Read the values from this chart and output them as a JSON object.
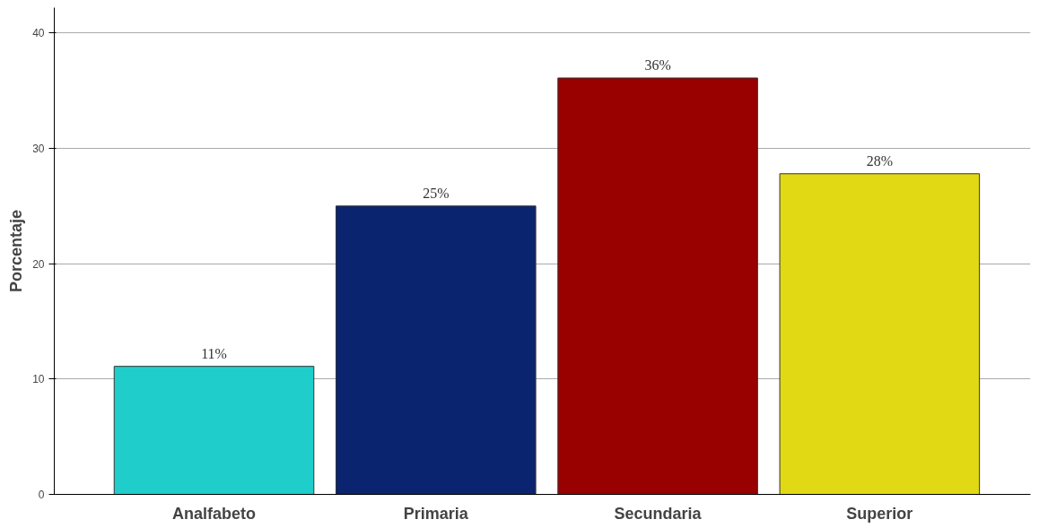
{
  "chart_data": {
    "type": "bar",
    "ylabel": "Porcentaje",
    "categories": [
      "Analfabeto",
      "Primaria",
      "Secundaria",
      "Superior"
    ],
    "values": [
      11.1,
      25,
      36.1,
      27.8
    ],
    "colors": [
      "#1fcecb",
      "#0b2470",
      "#990000",
      "#e1d913"
    ],
    "value_labels": [
      "11%",
      "25%",
      "36%",
      "28%"
    ],
    "ylim": [
      0,
      42.2
    ],
    "yticks": [
      0,
      10,
      20,
      30,
      40
    ],
    "grid": "y"
  }
}
